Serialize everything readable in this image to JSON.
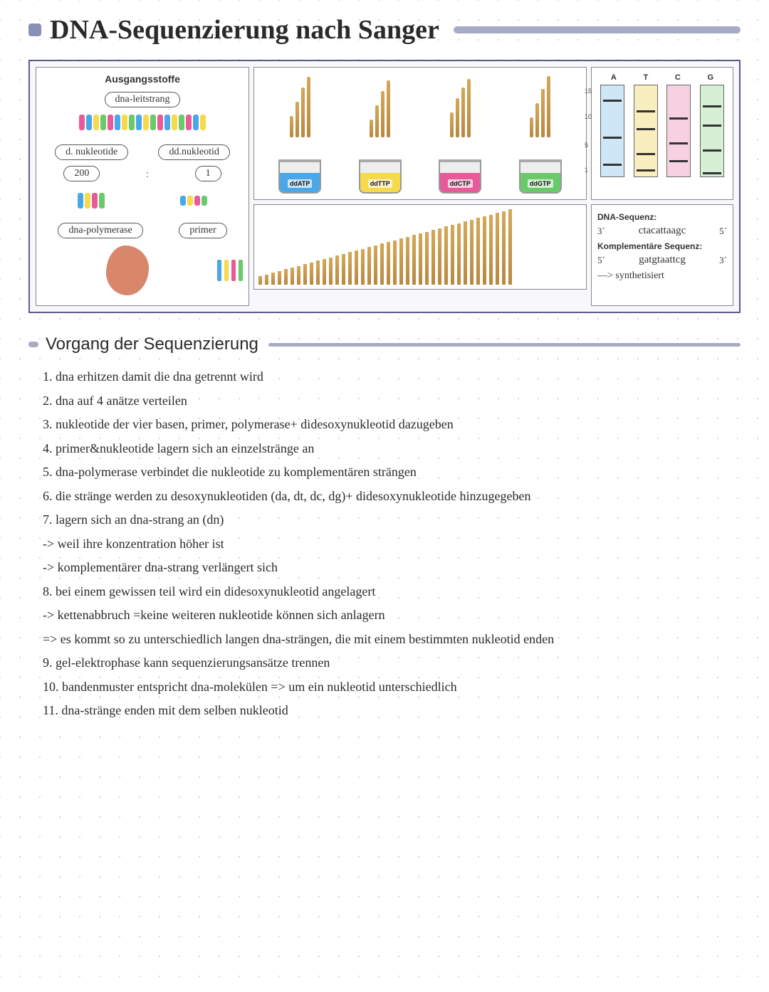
{
  "title": "DNA-Sequenzierung nach Sanger",
  "diagram": {
    "ausgang_title": "Ausgangsstoffe",
    "leitstrang": "dna-leitstrang",
    "d_nuk": "d. nukleotide",
    "dd_nuk": "dd.nukleotid",
    "ratio_a": "200",
    "ratio_sep": ":",
    "ratio_b": "1",
    "polymerase": "dna-polymerase",
    "primer": "primer",
    "beakers": [
      {
        "label": "ddATP",
        "color": "#4aa8e8"
      },
      {
        "label": "ddTTP",
        "color": "#f7d94c"
      },
      {
        "label": "ddCTP",
        "color": "#e85a9a"
      },
      {
        "label": "ddGTP",
        "color": "#6ac96a"
      }
    ],
    "gel_headers": [
      "A",
      "T",
      "C",
      "G"
    ],
    "lane_colors": [
      "#cfe6f7",
      "#f9eebd",
      "#f7d1e2",
      "#d5f0d5"
    ],
    "gel_scale": [
      "15",
      "10",
      "5",
      "1"
    ],
    "bands": {
      "A": [
        20,
        72,
        110
      ],
      "T": [
        35,
        60,
        95,
        118
      ],
      "C": [
        45,
        80,
        105
      ],
      "G": [
        28,
        55,
        90,
        122
      ]
    },
    "seq": {
      "label1": "DNA-Sequenz:",
      "end1a": "3´",
      "seq1": "ctacattaagc",
      "end1b": "5´",
      "label2": "Komplementäre Sequenz:",
      "end2a": "5´",
      "seq2": "gatgtaattcg",
      "end2b": "3´",
      "synth": "—> synthetisiert"
    }
  },
  "section_title": "Vorgang der Sequenzierung",
  "steps": [
    "1. dna erhitzen damit die dna getrennt wird",
    "2. dna auf 4 anätze verteilen",
    "3. nukleotide der vier basen, primer, polymerase+ didesoxynukleotid dazugeben",
    "4. primer&nukleotide lagern sich an einzelstränge an",
    "5. dna-polymerase verbindet die nukleotide zu komplementären strängen",
    "6. die stränge werden zu desoxynukleotiden (da, dt, dc, dg)+ didesoxynukleotide hinzugegeben",
    "7. lagern sich an dna-strang an (dn)",
    " -> weil ihre konzentration höher ist",
    " -> komplementärer dna-strang verlängert sich",
    "8. bei einem gewissen teil wird ein didesoxynukleotid angelagert",
    " -> kettenabbruch =keine weiteren nukleotide können sich anlagern",
    " => es kommt so zu unterschiedlich langen dna-strängen, die mit einem bestimmten nukleotid enden",
    "9. gel-elektrophase kann sequenzierungsansätze trennen",
    "10. bandenmuster entspricht dna-molekülen => um ein nukleotid unterschiedlich",
    "11. dna-stränge enden mit dem selben nukleotid"
  ],
  "colors": {
    "accent": "#a6aac5"
  }
}
